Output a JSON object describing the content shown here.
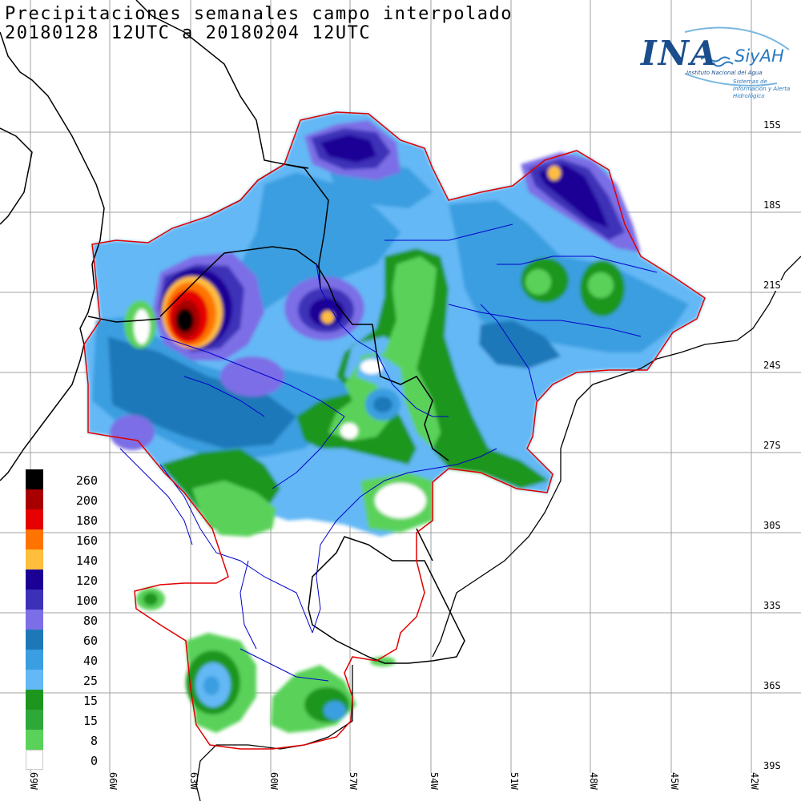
{
  "title": {
    "line1": "Precipitaciones semanales campo interpolado",
    "line2": "20180128 12UTC a 20180204 12UTC"
  },
  "logo": {
    "name": "INA",
    "system": "SiyAH",
    "subtitle": "Instituto Nacional del Agua",
    "tagline": "Sistemas de Información y Alerta Hidrológico"
  },
  "latitude_labels": [
    "15S",
    "18S",
    "21S",
    "24S",
    "27S",
    "30S",
    "33S",
    "36S",
    "39S"
  ],
  "longitude_labels": [
    "69W",
    "66W",
    "63W",
    "60W",
    "57W",
    "54W",
    "51W",
    "48W",
    "45W",
    "42W"
  ],
  "legend": [
    {
      "label": "260",
      "color": "#000000"
    },
    {
      "label": "200",
      "color": "#a80000"
    },
    {
      "label": "180",
      "color": "#e60000"
    },
    {
      "label": "160",
      "color": "#ff7400"
    },
    {
      "label": "140",
      "color": "#ffbe3c"
    },
    {
      "label": "120",
      "color": "#1c0096"
    },
    {
      "label": "100",
      "color": "#3c30b8"
    },
    {
      "label": "80",
      "color": "#7c6ee6"
    },
    {
      "label": "60",
      "color": "#1e78b8"
    },
    {
      "label": "40",
      "color": "#3a9ee0"
    },
    {
      "label": "25",
      "color": "#64b8f5"
    },
    {
      "label": "15",
      "color": "#1e961e"
    },
    {
      "label": "15",
      "color": "#2fa83a"
    },
    {
      "label": "8",
      "color": "#5ad25a"
    },
    {
      "label": "0",
      "color": "#ffffff"
    }
  ],
  "colors": {
    "grid": "#a0a0a0",
    "basin_outline": "#e00000",
    "country_borders": "#000000",
    "rivers": "#0000cc"
  }
}
